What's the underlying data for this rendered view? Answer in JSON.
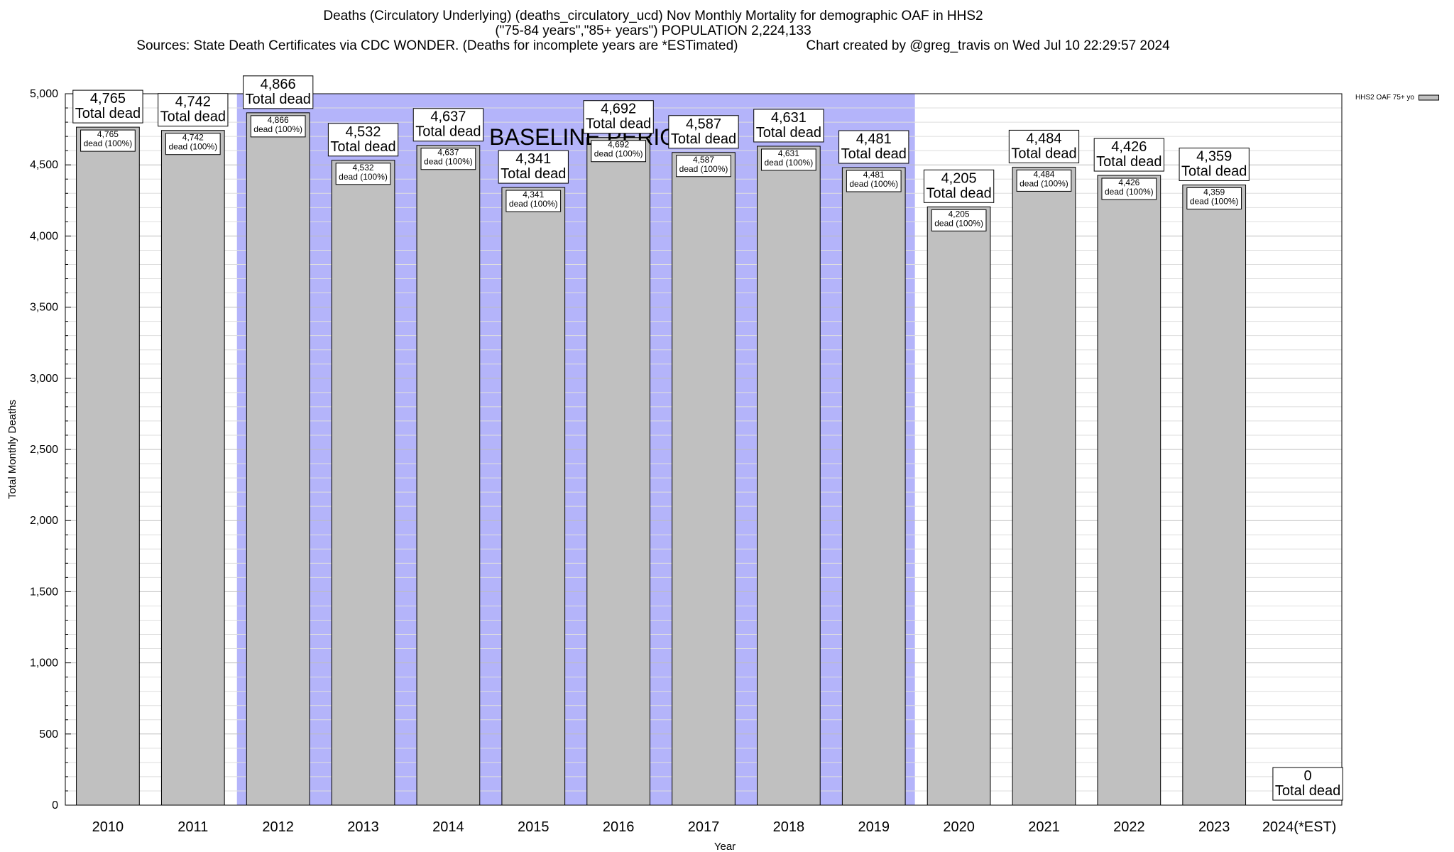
{
  "chart_data": {
    "type": "bar",
    "title": "Deaths (Circulatory Underlying) (deaths_circulatory_ucd) Nov Monthly Mortality for demographic OAF in HHS2",
    "subtitle": "(\"75-84 years\",\"85+ years\") POPULATION 2,224,133",
    "sources": "Sources: State Death Certificates via CDC WONDER. (Deaths for incomplete years are *ESTimated)",
    "credit": "Chart created by @greg_travis on Wed Jul 10 22:29:57 2024",
    "xlabel": "Year",
    "ylabel": "Total Monthly Deaths",
    "ylim": [
      0,
      5000
    ],
    "yticks": [
      0,
      500,
      1000,
      1500,
      2000,
      2500,
      3000,
      3500,
      4000,
      4500,
      5000
    ],
    "ytick_labels": [
      "0",
      "500",
      "1,000",
      "1,500",
      "2,000",
      "2,500",
      "3,000",
      "3,500",
      "4,000",
      "4,500",
      "5,000"
    ],
    "categories": [
      "2010",
      "2011",
      "2012",
      "2013",
      "2014",
      "2015",
      "2016",
      "2017",
      "2018",
      "2019",
      "2020",
      "2021",
      "2022",
      "2023",
      "2024(*EST)"
    ],
    "series": [
      {
        "name": "HHS2 OAF 75+ yo",
        "color": "#c0c0c0",
        "values": [
          4765,
          4742,
          4866,
          4532,
          4637,
          4341,
          4692,
          4587,
          4631,
          4481,
          4205,
          4484,
          4426,
          4359,
          0
        ]
      }
    ],
    "value_labels": [
      "4,765",
      "4,742",
      "4,866",
      "4,532",
      "4,637",
      "4,341",
      "4,692",
      "4,587",
      "4,631",
      "4,481",
      "4,205",
      "4,484",
      "4,426",
      "4,359",
      "0"
    ],
    "top_label_suffix": "Total dead",
    "inner_label_suffix": "dead (100%)",
    "baseline_period": {
      "label": "BASELINE PERIOD",
      "start": "2012",
      "end": "2019",
      "color": "#b4b4fa"
    },
    "grid": true,
    "legend_position": "top-right"
  }
}
